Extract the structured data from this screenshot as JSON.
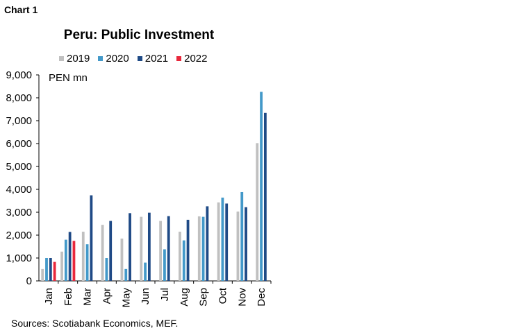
{
  "header": {
    "chart_label": "Chart 1"
  },
  "chart_data": {
    "type": "bar",
    "title": "Peru: Public Investment",
    "ylabel": "PEN mn",
    "xlabel": "",
    "ylim": [
      0,
      9000
    ],
    "yticks": [
      0,
      1000,
      2000,
      3000,
      4000,
      5000,
      6000,
      7000,
      8000,
      9000
    ],
    "ytick_labels": [
      "0",
      "1,000",
      "2,000",
      "3,000",
      "4,000",
      "5,000",
      "6,000",
      "7,000",
      "8,000",
      "9,000"
    ],
    "categories": [
      "Jan",
      "Feb",
      "Mar",
      "Apr",
      "May",
      "Jun",
      "Jul",
      "Aug",
      "Sep",
      "Oct",
      "Nov",
      "Dec"
    ],
    "series": [
      {
        "name": "2019",
        "color": "#c0c0c0",
        "values": [
          520,
          1280,
          2150,
          2450,
          1850,
          2800,
          2620,
          2150,
          2820,
          3430,
          3030,
          6020
        ]
      },
      {
        "name": "2020",
        "color": "#4399c9",
        "values": [
          1000,
          1800,
          1600,
          1000,
          520,
          800,
          1380,
          1770,
          2800,
          3640,
          3880,
          8260
        ]
      },
      {
        "name": "2021",
        "color": "#1f4a86",
        "values": [
          1000,
          2140,
          3740,
          2620,
          2960,
          2980,
          2830,
          2670,
          3260,
          3380,
          3220,
          7340
        ]
      },
      {
        "name": "2022",
        "color": "#e8283c",
        "values": [
          830,
          1750,
          null,
          null,
          null,
          null,
          null,
          null,
          null,
          null,
          null,
          null
        ]
      }
    ],
    "legend_position": "top",
    "grid": false
  },
  "footer": {
    "sources": "Sources: Scotiabank Economics, MEF."
  }
}
